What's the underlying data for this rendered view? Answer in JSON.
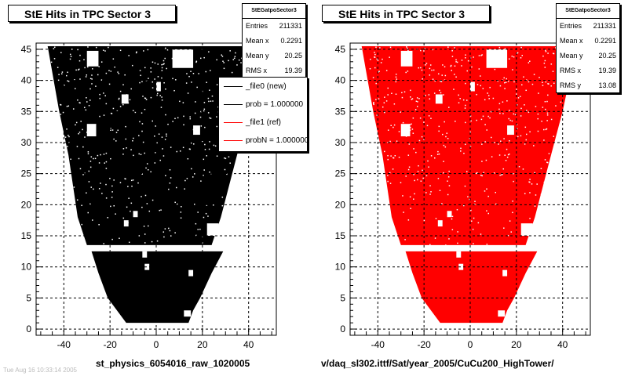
{
  "chart_data": [
    {
      "type": "scatter",
      "title": "StE Hits in TPC Sector 3",
      "marker_color": "#000000",
      "xlim": [
        -52,
        52
      ],
      "ylim": [
        -1,
        46
      ],
      "xticks": [
        -40,
        -20,
        0,
        20,
        40
      ],
      "yticks": [
        0,
        5,
        10,
        15,
        20,
        25,
        30,
        35,
        40,
        45
      ],
      "grid": true,
      "stats": {
        "name": "StEGatpoSector3",
        "rows": [
          {
            "label": "Entries",
            "value": "211331"
          },
          {
            "label": "Mean x",
            "value": "0.2291"
          },
          {
            "label": "Mean y",
            "value": "20.25"
          },
          {
            "label": "RMS x",
            "value": "19.39"
          }
        ]
      },
      "legend": {
        "placement": "top-right",
        "entries": [
          {
            "label": "_file0 (new)",
            "color": "#000000"
          },
          {
            "label": "prob = 1.000000",
            "color": "#000000"
          },
          {
            "label": "_file1 (ref)",
            "color": "#ff0000"
          },
          {
            "label": "probN = 1.000000",
            "color": "#ff0000"
          }
        ]
      },
      "xlabel": "st_physics_6054016_raw_1020005"
    },
    {
      "type": "scatter",
      "title": "StE Hits in TPC Sector 3",
      "marker_color": "#ff0000",
      "xlim": [
        -52,
        52
      ],
      "ylim": [
        -1,
        46
      ],
      "xticks": [
        -40,
        -20,
        0,
        20,
        40
      ],
      "yticks": [
        0,
        5,
        10,
        15,
        20,
        25,
        30,
        35,
        40,
        45
      ],
      "grid": true,
      "stats": {
        "name": "StEGatpoSector3",
        "rows": [
          {
            "label": "Entries",
            "value": "211331"
          },
          {
            "label": "Mean x",
            "value": "0.2291"
          },
          {
            "label": "Mean y",
            "value": "20.25"
          },
          {
            "label": "RMS x",
            "value": "19.39"
          },
          {
            "label": "RMS y",
            "value": "13.08"
          }
        ]
      },
      "xlabel": "v/daq_sl302.ittf/Sat/year_2005/CuCu200_HighTower/"
    }
  ],
  "footer_faint": "Tue Aug 16 10:33:14 2005"
}
